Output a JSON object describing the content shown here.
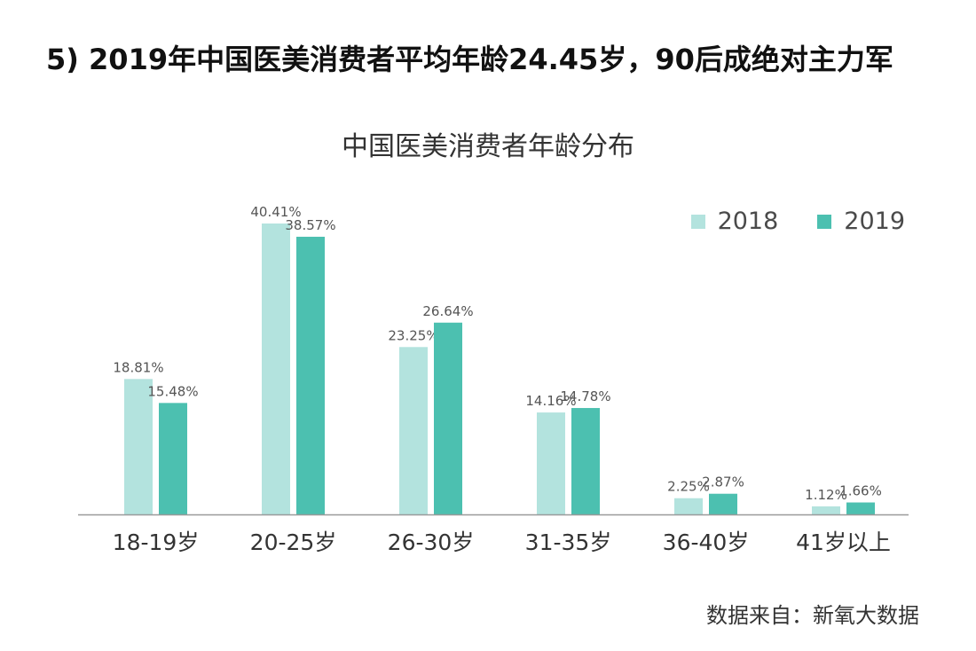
{
  "headline": "5) 2019年中国医美消费者平均年龄24.45岁，90后成绝对主力军",
  "source_text": "数据来自：新氧大数据",
  "colors": {
    "series_2018": "#b3e3de",
    "series_2019": "#4cc0b0",
    "axis": "#9a9a9a"
  },
  "chart_data": {
    "type": "bar",
    "title": "中国医美消费者年龄分布",
    "categories": [
      "18-19岁",
      "20-25岁",
      "26-30岁",
      "31-35岁",
      "36-40岁",
      "41岁以上"
    ],
    "series": [
      {
        "name": "2018",
        "values": [
          18.81,
          40.41,
          23.25,
          14.16,
          2.25,
          1.12
        ],
        "labels": [
          "18.81%",
          "40.41%",
          "23.25%",
          "14.16%",
          "2.25%",
          "1.12%"
        ]
      },
      {
        "name": "2019",
        "values": [
          15.48,
          38.57,
          26.64,
          14.78,
          2.87,
          1.66
        ],
        "labels": [
          "15.48%",
          "38.57%",
          "26.64%",
          "14.78%",
          "2.87%",
          "1.66%"
        ]
      }
    ],
    "ylim": [
      0,
      40.41
    ],
    "grid": false,
    "legend_position": "top-right",
    "xlabel": "",
    "ylabel": ""
  }
}
